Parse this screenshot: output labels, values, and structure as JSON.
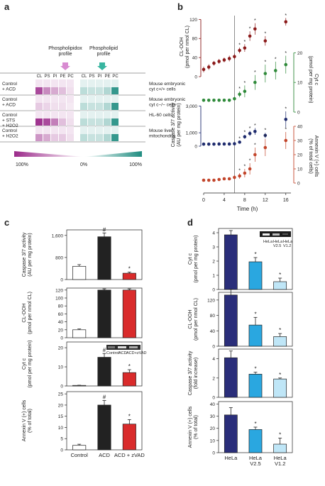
{
  "panel_a": {
    "letter": "a",
    "header_peroxidation": "Phospholipidox\nprofile",
    "header_profile": "Phospholipid\nprofile",
    "columns": [
      "CL",
      "PS",
      "PI",
      "PE",
      "PC"
    ],
    "rows": [
      {
        "label": "Control\n+ ACD",
        "desc": "Mouse embryonic\ncyt c+/+ cells",
        "ox": [
          0.85,
          0.55,
          0.4,
          0.3,
          0.15
        ],
        "pr": [
          0.3,
          0.25,
          0.25,
          0.35,
          0.9
        ]
      },
      {
        "label": "Control\n+ ACD",
        "desc": "Mouse embryonic\ncyt c−/− cells",
        "ox": [
          0.25,
          0.2,
          0.15,
          0.15,
          0.1
        ],
        "pr": [
          0.3,
          0.25,
          0.25,
          0.35,
          0.9
        ]
      },
      {
        "label": "Control\n+ STS\n+ H2O2",
        "desc": "HL-60 cells",
        "ox": [
          0.95,
          0.85,
          0.6,
          0.3,
          0.15
        ],
        "pr": [
          0.3,
          0.25,
          0.25,
          0.35,
          0.9
        ]
      },
      {
        "label": "Control\n+ H2O2",
        "desc": "Mouse liver\nmitochondria",
        "ox": [
          0.5,
          0.4,
          0.25,
          0.25,
          0.15
        ],
        "pr": [
          0.3,
          0.25,
          0.25,
          0.35,
          0.9
        ]
      }
    ],
    "scale_left": "100%",
    "scale_mid": "0%",
    "scale_right": "100%",
    "colors": {
      "ox": "#9b2a8a",
      "pr": "#1f8c80"
    }
  },
  "panel_b": {
    "letter": "b",
    "xlabel": "Time (h)",
    "xticks": [
      0,
      4,
      8,
      12,
      16
    ],
    "vline_x": 6,
    "cl_ooh": {
      "ylabel": "CL-OOH\n(pmol per nmol CL)",
      "yticks": [
        0,
        40,
        80,
        120
      ],
      "color": "#8b1a1a",
      "x": [
        0,
        1,
        2,
        3,
        4,
        5,
        6,
        7,
        8,
        9,
        10,
        12,
        16
      ],
      "y": [
        15,
        20,
        28,
        32,
        35,
        38,
        42,
        55,
        60,
        85,
        100,
        75,
        115
      ],
      "err": [
        6,
        6,
        5,
        5,
        5,
        6,
        6,
        6,
        8,
        10,
        12,
        10,
        8
      ],
      "sig": [
        false,
        false,
        false,
        false,
        false,
        false,
        false,
        true,
        true,
        true,
        true,
        true,
        true
      ]
    },
    "cyt_c": {
      "ylabel": "Cyt c\n(pmol per mg protein)",
      "yticks": [
        0,
        10,
        20
      ],
      "color": "#2f8a3a",
      "x": [
        0,
        1,
        2,
        3,
        4,
        5,
        6,
        7,
        8,
        10,
        12,
        14,
        16
      ],
      "y": [
        4,
        4,
        4,
        4,
        4,
        4,
        4.5,
        6,
        7,
        10,
        13,
        14,
        16
      ],
      "err": [
        0.5,
        0.5,
        0.5,
        0.5,
        0.5,
        0.5,
        0.6,
        1,
        2,
        2.5,
        3,
        3,
        3
      ],
      "sig": [
        false,
        false,
        false,
        false,
        false,
        false,
        false,
        true,
        true,
        true,
        true,
        true,
        true
      ]
    },
    "caspase": {
      "ylabel": "Caspase 3/7 activity\n(AU per mg protein)",
      "yticks": [
        0,
        1000,
        3000
      ],
      "color": "#1f2c6e",
      "x": [
        0,
        1,
        2,
        3,
        4,
        5,
        6,
        7,
        8,
        9,
        10,
        12,
        16
      ],
      "y": [
        150,
        150,
        150,
        160,
        160,
        160,
        180,
        300,
        700,
        950,
        1100,
        800,
        2000
      ],
      "err": [
        40,
        40,
        40,
        40,
        40,
        40,
        50,
        80,
        150,
        200,
        250,
        200,
        600
      ],
      "sig": [
        false,
        false,
        false,
        false,
        false,
        false,
        false,
        true,
        true,
        true,
        true,
        true,
        true
      ]
    },
    "annexin": {
      "ylabel": "Annexin V (+) cells\n(% of total cells)",
      "yticks": [
        0,
        10,
        20,
        30,
        40
      ],
      "color": "#c2452b",
      "x": [
        0,
        1,
        2,
        3,
        4,
        5,
        6,
        7,
        8,
        9,
        10,
        12,
        16
      ],
      "y": [
        2,
        2,
        2,
        2.5,
        3,
        3,
        4,
        5,
        7,
        10,
        20,
        25,
        30
      ],
      "err": [
        1,
        1,
        1,
        1,
        1,
        1,
        1.5,
        2,
        3,
        4,
        5,
        6,
        6
      ],
      "sig": [
        false,
        false,
        false,
        false,
        false,
        false,
        false,
        true,
        true,
        true,
        true,
        true,
        true
      ]
    }
  },
  "panel_c": {
    "letter": "c",
    "categories": [
      "Control",
      "ACD",
      "ACD + zVAD"
    ],
    "colors": [
      "#ffffff",
      "#222222",
      "#d92b2b"
    ],
    "inset_labels": [
      "Control",
      "ACD",
      "ACD+zVAD"
    ],
    "subplots": [
      {
        "ylabel": "Caspase 3/7 activity\n(AU per mg protein)",
        "yticks": [
          0,
          800,
          1600
        ],
        "ymax": 1800,
        "values": [
          480,
          1550,
          230
        ],
        "err": [
          60,
          140,
          40
        ],
        "marks": [
          "",
          "#",
          "*"
        ]
      },
      {
        "ylabel": "CL-OOH\n(pmol per nmol CL)",
        "yticks": [
          0,
          20,
          40,
          60,
          80,
          100,
          120
        ],
        "ymax": 125,
        "values": [
          20,
          120,
          120
        ],
        "err": [
          2,
          3,
          3
        ],
        "marks": [
          "",
          "",
          ""
        ]
      },
      {
        "ylabel": "Cyt c\n(pmol per mg protein)",
        "yticks": [
          0,
          10,
          20
        ],
        "ymax": 23,
        "values": [
          0.3,
          15,
          7
        ],
        "err": [
          0.1,
          2,
          1.5
        ],
        "marks": [
          "",
          "#",
          "*"
        ]
      },
      {
        "ylabel": "Annexin V (+) cells\n(% of total)",
        "yticks": [
          0,
          5,
          10,
          15,
          20,
          25
        ],
        "ymax": 26,
        "values": [
          2,
          20,
          11.5
        ],
        "err": [
          0.5,
          2,
          2
        ],
        "marks": [
          "",
          "#",
          "*"
        ]
      }
    ]
  },
  "panel_d": {
    "letter": "d",
    "categories": [
      "HeLa",
      "HeLa\nV2.5",
      "HeLa\nV1.2"
    ],
    "colors": [
      "#2a2e7a",
      "#2aa7e0",
      "#bfe6f7"
    ],
    "inset_labels": [
      "HeLa",
      "HeLa\nV2.5",
      "HeLa\nV1.2"
    ],
    "subplots": [
      {
        "ylabel": "Cyt c\n(pmol per mg protein)",
        "yticks": [
          0,
          1,
          2,
          3,
          4
        ],
        "ymax": 4.3,
        "values": [
          3.85,
          1.95,
          0.55
        ],
        "err": [
          0.3,
          0.3,
          0.25
        ],
        "marks": [
          "",
          "*",
          "*"
        ]
      },
      {
        "ylabel": "CL-OOH\n(pmol per nmol CL)",
        "yticks": [
          0,
          40,
          80,
          120
        ],
        "ymax": 140,
        "values": [
          133,
          55,
          25
        ],
        "err": [
          15,
          20,
          8
        ],
        "marks": [
          "",
          "*",
          "*"
        ]
      },
      {
        "ylabel": "Caspase 3/7 activity\n(fold increase)",
        "yticks": [
          0,
          2,
          4
        ],
        "ymax": 5,
        "values": [
          4.1,
          2.4,
          1.9
        ],
        "err": [
          0.7,
          0.2,
          0.1
        ],
        "marks": [
          "",
          "*",
          "*"
        ]
      },
      {
        "ylabel": "Annexin V (+) cells\n(% of total)",
        "yticks": [
          0,
          10,
          20,
          30,
          40
        ],
        "ymax": 42,
        "values": [
          31,
          19,
          7
        ],
        "err": [
          6,
          2,
          5
        ],
        "marks": [
          "",
          "*",
          "*"
        ]
      }
    ]
  }
}
